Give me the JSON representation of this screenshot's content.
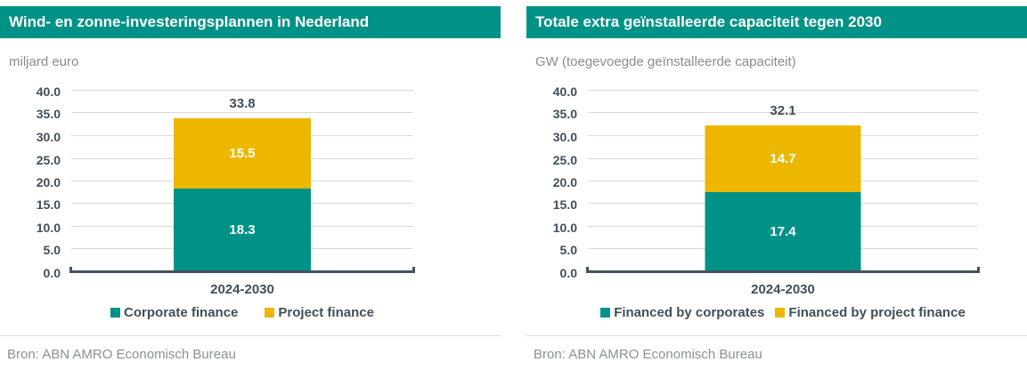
{
  "colors": {
    "teal": "#009286",
    "yellow": "#EDB700",
    "axis_line": "#44535C",
    "text_dark": "#404F5A",
    "gridline": "#D9D9D9",
    "subtitle_gray": "#8C8C8C",
    "source_gray": "#8A9196",
    "title_text": "#FFFFFF",
    "bar_value_text": "#FFFFFF"
  },
  "panels": [
    {
      "title": "Wind- en zonne-investeringsplannen in Nederland",
      "unit_label": "miljard euro",
      "source": "Bron: ABN AMRO Economisch Bureau",
      "chart_data": {
        "type": "bar",
        "stacked": true,
        "categories": [
          "2024-2030"
        ],
        "series": [
          {
            "name": "Corporate finance",
            "values": [
              18.3
            ],
            "color": "#009286"
          },
          {
            "name": "Project finance",
            "values": [
              15.5
            ],
            "color": "#EDB700"
          }
        ],
        "totals": [
          "33.8"
        ],
        "segment_labels": [
          [
            "18.3",
            "15.5"
          ]
        ],
        "title": "Wind- en zonne-investeringsplannen in Nederland",
        "xlabel": "",
        "ylabel": "miljard euro",
        "ylim": [
          0,
          40
        ],
        "ytick_step": 5,
        "ytick_labels": [
          "0.0",
          "5.0",
          "10.0",
          "15.0",
          "20.0",
          "25.0",
          "30.0",
          "35.0",
          "40.0"
        ],
        "grid": true,
        "legend_position": "bottom"
      }
    },
    {
      "title": "Totale extra geïnstalleerde capaciteit tegen 2030",
      "unit_label": "GW (toegevoegde geïnstalleerde capaciteit)",
      "source": "Bron: ABN AMRO Economisch Bureau",
      "chart_data": {
        "type": "bar",
        "stacked": true,
        "categories": [
          "2024-2030"
        ],
        "series": [
          {
            "name": "Financed by corporates",
            "values": [
              17.4
            ],
            "color": "#009286"
          },
          {
            "name": "Financed by project finance",
            "values": [
              14.7
            ],
            "color": "#EDB700"
          }
        ],
        "totals": [
          "32.1"
        ],
        "segment_labels": [
          [
            "17.4",
            "14.7"
          ]
        ],
        "title": "Totale extra geïnstalleerde capaciteit tegen 2030",
        "xlabel": "",
        "ylabel": "GW (toegevoegde geïnstalleerde capaciteit)",
        "ylim": [
          0,
          40
        ],
        "ytick_step": 5,
        "ytick_labels": [
          "0.0",
          "5.0",
          "10.0",
          "15.0",
          "20.0",
          "25.0",
          "30.0",
          "35.0",
          "40.0"
        ],
        "grid": true,
        "legend_position": "bottom"
      }
    }
  ]
}
